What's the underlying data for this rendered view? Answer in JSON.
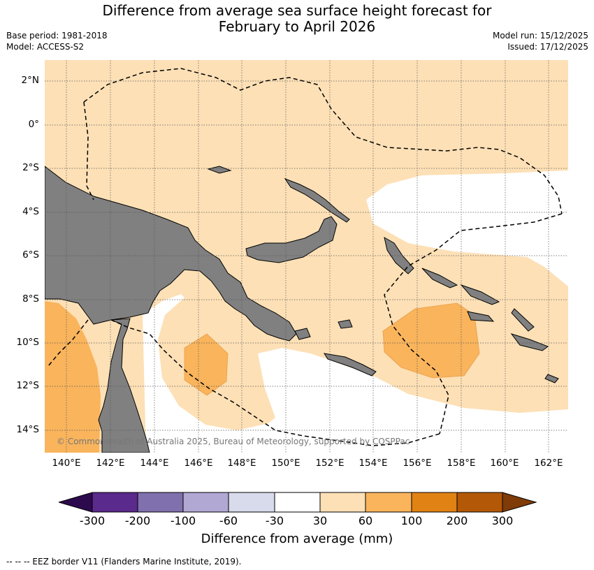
{
  "title": {
    "line1": "Difference from average sea surface height forecast for",
    "line2": "February to April 2026"
  },
  "meta": {
    "base_period": "Base period: 1981-2018",
    "model": "Model: ACCESS-S2",
    "model_run": "Model run: 15/12/2025",
    "issued": "Issued: 17/12/2025"
  },
  "map": {
    "lat_labels": [
      "2°N",
      "0°",
      "2°S",
      "4°S",
      "6°S",
      "8°S",
      "10°S",
      "12°S",
      "14°S"
    ],
    "lon_labels": [
      "140°E",
      "142°E",
      "144°E",
      "146°E",
      "148°E",
      "150°E",
      "152°E",
      "154°E",
      "156°E",
      "158°E",
      "160°E",
      "162°E"
    ],
    "land_color": "#808080",
    "copyright": "© Commonwealth of Australia 2025, Bureau of Meteorology, supported by COSPPac"
  },
  "colorbar": {
    "ticks": [
      "-300",
      "-200",
      "-100",
      "-60",
      "-30",
      "30",
      "60",
      "100",
      "200",
      "300"
    ],
    "colors": [
      "#2d0a4e",
      "#5a2a8c",
      "#8070ae",
      "#b1a8d3",
      "#d8dbeb",
      "#ffffff",
      "#fde0b6",
      "#f9b45c",
      "#e08214",
      "#b35806",
      "#7f3b08"
    ],
    "label": "Difference from average (mm)"
  },
  "footer": "--  --  -- EEZ border V11 (Flanders Marine Institute, 2019)."
}
